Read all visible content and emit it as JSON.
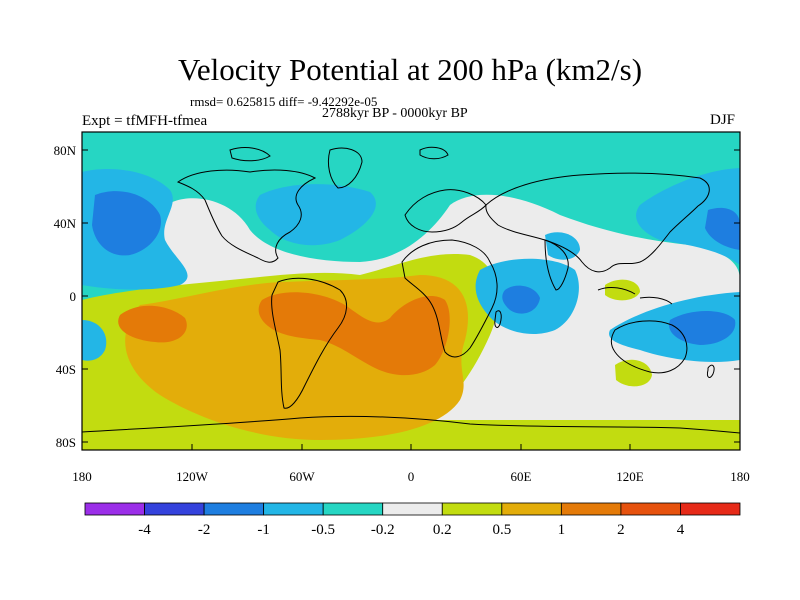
{
  "title": "Velocity Potential at 200 hPa (km2/s)",
  "stats": "rmsd= 0.625815 diff= -9.42292e-05",
  "period": "2788kyr BP - 0000kyr BP",
  "experiment": "Expt = tfMFH-tfmea",
  "season": "DJF",
  "axes": {
    "lat_ticks": [
      "80N",
      "40N",
      "0",
      "40S",
      "80S"
    ],
    "lon_ticks": [
      "180",
      "120W",
      "60W",
      "0",
      "60E",
      "120E",
      "180"
    ]
  },
  "colorbar": {
    "colors": [
      "#9b2ee8",
      "#3442dc",
      "#1e7ee0",
      "#23b6e6",
      "#26d6c3",
      "#ececec",
      "#c2dc10",
      "#e3ad0a",
      "#e47a08",
      "#e6520e",
      "#e62a18"
    ],
    "labels": [
      "-4",
      "-2",
      "-1",
      "-0.5",
      "-0.2",
      "0.2",
      "0.5",
      "1",
      "2",
      "4"
    ]
  },
  "palette": {
    "neg_strong": "#1e7ee0",
    "neg_mid": "#23b6e6",
    "neg_weak": "#26d6c3",
    "neutral": "#ececec",
    "pos_weak": "#c2dc10",
    "pos_mid": "#e3ad0a",
    "pos_strong": "#e47a08"
  }
}
